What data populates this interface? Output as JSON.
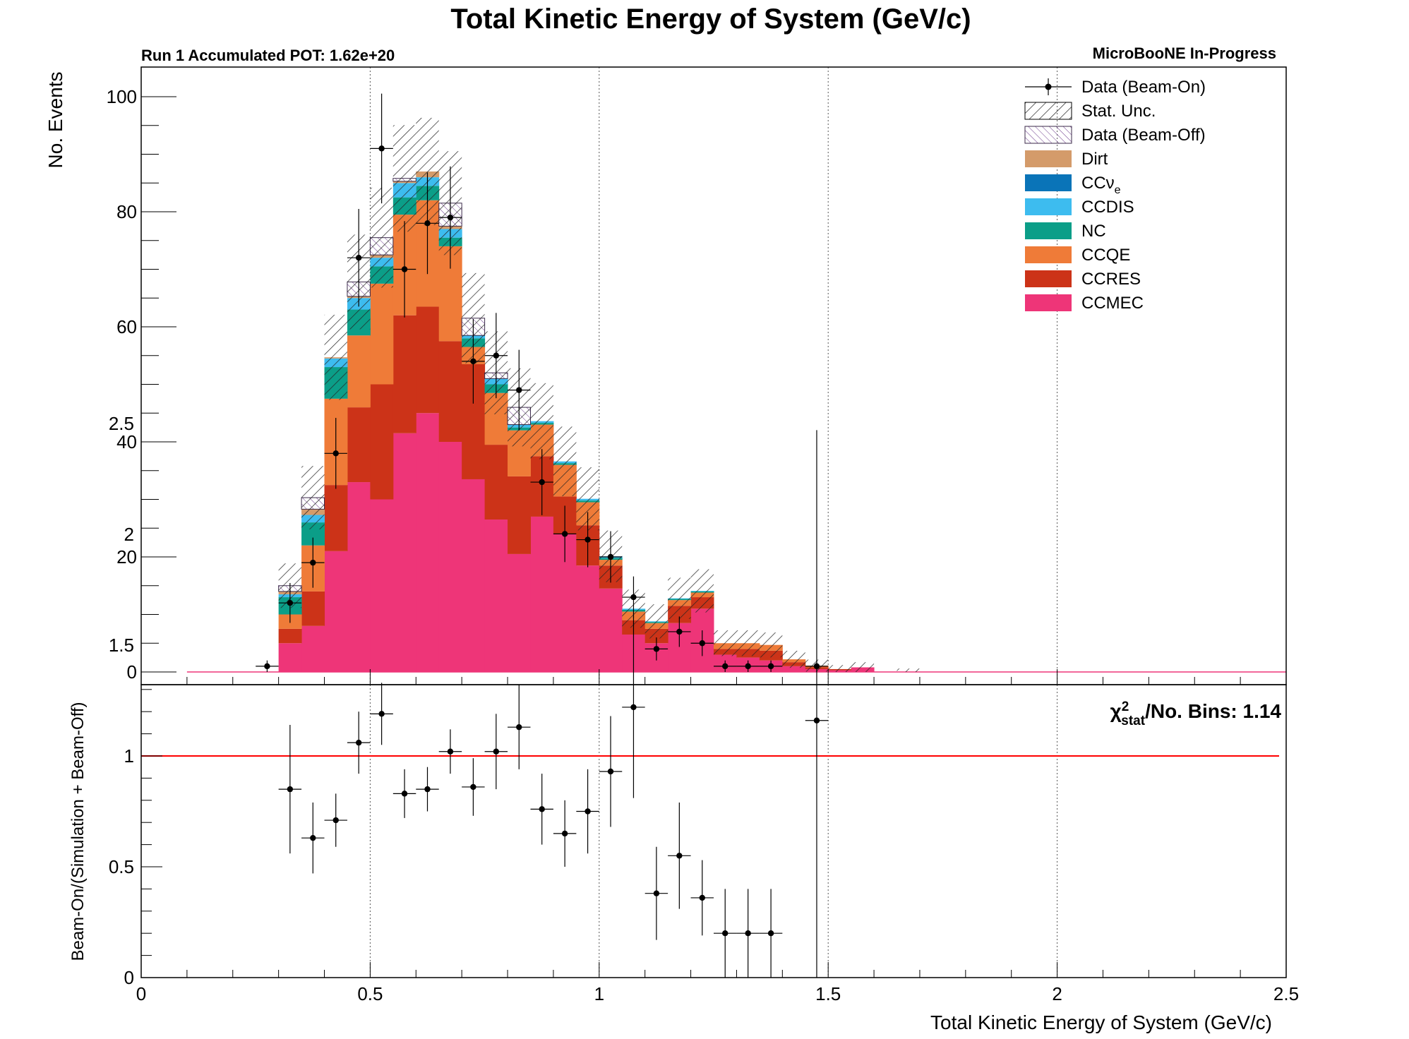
{
  "colors": {
    "Dirt": "#d49b6a",
    "CCnue": "#0a74b8",
    "CCDIS": "#3dbcef",
    "NC": "#0b9e88",
    "CCQE": "#ef7b38",
    "CCRES": "#cc3318",
    "CCMEC": "#ee3578",
    "ratio_line": "#ff0000"
  },
  "chart_data": [
    {
      "type": "bar",
      "stacked": true,
      "title": "Total Kinetic Energy of System (GeV/c)",
      "annotation_left": "Run 1 Accumulated POT: 1.62e+20",
      "annotation_right": "MicroBooNE In-Progress",
      "ylabel": "No. Events",
      "xlim": [
        0,
        2.5
      ],
      "ylim": [
        0,
        105
      ],
      "x_ticks": [
        0,
        0.5,
        1,
        1.5,
        2,
        2.5
      ],
      "y_ticks": [
        0,
        20,
        40,
        60,
        80,
        100
      ],
      "grid": "vertical dotted lines at major x ticks",
      "legend_position": "top-right",
      "bin_width": 0.05,
      "bin_starts": [
        0.25,
        0.3,
        0.35,
        0.4,
        0.45,
        0.5,
        0.55,
        0.6,
        0.65,
        0.7,
        0.75,
        0.8,
        0.85,
        0.9,
        0.95,
        1.0,
        1.05,
        1.1,
        1.15,
        1.2,
        1.25,
        1.3,
        1.35,
        1.4,
        1.45,
        1.5,
        1.55
      ],
      "series": [
        {
          "name": "CCMEC",
          "values": [
            0,
            5,
            8,
            21,
            33,
            30,
            41.5,
            45,
            40,
            33.5,
            26.5,
            20.5,
            27,
            24,
            18.5,
            14.5,
            6.5,
            5,
            8.5,
            11,
            3,
            2.5,
            2,
            1,
            0.5,
            0.3,
            0.8
          ]
        },
        {
          "name": "CCRES",
          "values": [
            0,
            2.5,
            6,
            11.5,
            13,
            20,
            20.5,
            18.5,
            17.5,
            20,
            13,
            13.5,
            10.5,
            6.5,
            7,
            4,
            2.5,
            2.5,
            3,
            2,
            1,
            1.5,
            1.7,
            0.7,
            0.3,
            0.2,
            0
          ]
        },
        {
          "name": "CCQE",
          "values": [
            0,
            2.5,
            8,
            15,
            12.5,
            17.5,
            17.5,
            18.5,
            16.5,
            3,
            9,
            8,
            5.5,
            5.5,
            4,
            1,
            1.5,
            1,
            1,
            0.8,
            1,
            1,
            1,
            0.5,
            0.3,
            0,
            0
          ]
        },
        {
          "name": "NC",
          "values": [
            0,
            3,
            4,
            5.5,
            4.5,
            3,
            3,
            2.5,
            1.5,
            1.5,
            1.5,
            0.5,
            0.3,
            0.3,
            0.3,
            0.3,
            0.3,
            0.2,
            0.2,
            0.2,
            0,
            0,
            0,
            0,
            0,
            0,
            0
          ]
        },
        {
          "name": "CCDIS",
          "values": [
            0,
            0.5,
            1.3,
            1.5,
            2,
            1.5,
            2.5,
            1.5,
            1.5,
            0.5,
            1,
            0.5,
            0.3,
            0.3,
            0.3,
            0.3,
            0.2,
            0.1,
            0.1,
            0.1,
            0,
            0,
            0,
            0,
            0,
            0,
            0
          ]
        },
        {
          "name": "CCνe",
          "values": [
            0,
            0,
            0,
            0,
            0,
            0,
            0,
            0,
            0,
            0,
            0,
            0,
            0,
            0,
            0,
            0,
            0,
            0,
            0,
            0,
            0,
            0,
            0,
            0,
            0,
            0,
            0
          ]
        },
        {
          "name": "Dirt",
          "values": [
            0,
            0.5,
            1,
            0.2,
            0.3,
            0.5,
            0.3,
            1,
            0.5,
            0,
            0,
            0,
            0,
            0,
            0,
            0,
            0,
            0,
            0,
            0,
            0,
            0,
            0,
            0,
            0,
            0,
            0
          ]
        },
        {
          "name": "Data (Beam-Off)",
          "values": [
            0,
            1,
            2,
            0,
            2.5,
            3,
            0.5,
            0,
            4,
            3,
            1,
            3,
            0,
            0,
            0,
            0,
            0,
            0,
            0,
            0,
            0,
            0,
            0,
            0,
            0,
            0,
            0
          ]
        }
      ],
      "data_points": {
        "name": "Data (Beam-On)",
        "x": [
          0.275,
          0.325,
          0.375,
          0.425,
          0.475,
          0.525,
          0.575,
          0.625,
          0.675,
          0.725,
          0.775,
          0.825,
          0.875,
          0.925,
          0.975,
          1.025,
          1.075,
          1.125,
          1.175,
          1.225,
          1.275,
          1.325,
          1.375,
          1.475
        ],
        "y": [
          1,
          12,
          19,
          38,
          72,
          91,
          70,
          78,
          79,
          54,
          55,
          49,
          33,
          24,
          23,
          20,
          13,
          4,
          7,
          5,
          1,
          1,
          1,
          1
        ]
      },
      "stat_unc_label": "Stat. Unc."
    },
    {
      "type": "scatter",
      "ylabel": "Beam-On/(Simulation + Beam-Off)",
      "xlabel": "Total Kinetic Energy of System (GeV/c)",
      "xlim": [
        0,
        2.5
      ],
      "ylim": [
        0,
        2.65
      ],
      "x_ticks": [
        0,
        0.5,
        1,
        1.5,
        2,
        2.5
      ],
      "y_ticks": [
        0,
        0.5,
        1,
        1.5,
        2,
        2.5
      ],
      "reference_line": 1,
      "chi2_label": "/No. Bins: 1.14",
      "chi2_symbol": "χ",
      "chi2_sup": "2",
      "chi2_sub": "stat",
      "points": {
        "x": [
          0.325,
          0.375,
          0.425,
          0.475,
          0.525,
          0.575,
          0.625,
          0.675,
          0.725,
          0.775,
          0.825,
          0.875,
          0.925,
          0.975,
          1.025,
          1.075,
          1.125,
          1.175,
          1.225,
          1.275,
          1.325,
          1.375,
          1.475
        ],
        "y": [
          0.85,
          0.63,
          0.71,
          1.06,
          1.19,
          0.83,
          0.85,
          1.02,
          0.86,
          1.02,
          1.13,
          0.76,
          0.65,
          0.75,
          0.93,
          1.22,
          0.38,
          0.55,
          0.36,
          0.2,
          0.2,
          0.2,
          1.16
        ],
        "err": [
          0.29,
          0.16,
          0.12,
          0.14,
          0.14,
          0.11,
          0.1,
          0.1,
          0.13,
          0.17,
          0.19,
          0.16,
          0.15,
          0.19,
          0.25,
          0.41,
          0.21,
          0.24,
          0.17,
          0.2,
          0.2,
          0.2,
          1.31
        ]
      }
    }
  ]
}
